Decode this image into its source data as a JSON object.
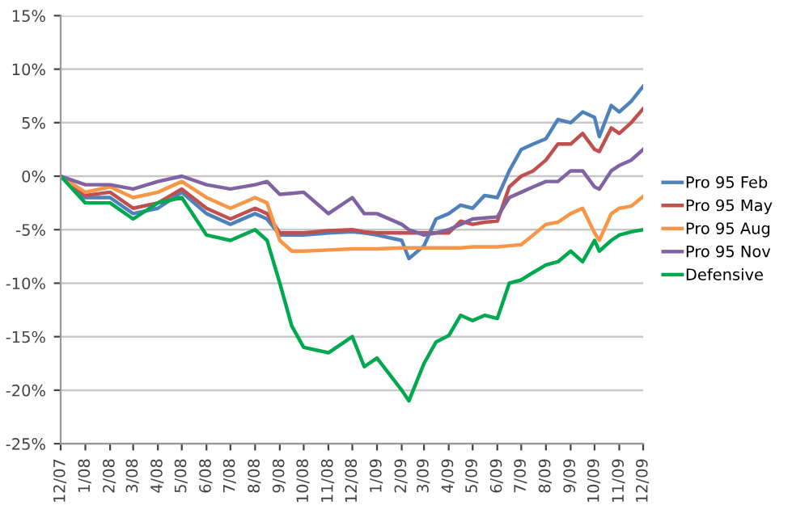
{
  "chart_data": {
    "type": "line",
    "x": [
      "2007-12-01",
      "2008-01-01",
      "2008-02-01",
      "2008-03-01",
      "2008-04-01",
      "2008-05-01",
      "2008-06-01",
      "2008-07-01",
      "2008-08-01",
      "2008-08-16",
      "2008-09-01",
      "2008-09-16",
      "2008-10-01",
      "2008-11-01",
      "2008-12-01",
      "2008-12-16",
      "2009-01-01",
      "2009-02-01",
      "2009-02-10",
      "2009-03-01",
      "2009-03-16",
      "2009-04-01",
      "2009-04-16",
      "2009-05-01",
      "2009-05-16",
      "2009-06-01",
      "2009-06-16",
      "2009-07-01",
      "2009-07-16",
      "2009-08-01",
      "2009-08-16",
      "2009-09-01",
      "2009-09-16",
      "2009-10-01",
      "2009-10-07",
      "2009-10-22",
      "2009-11-01",
      "2009-11-16",
      "2009-12-01"
    ],
    "series": [
      {
        "name": "Pro 95 Feb",
        "color": "#4f81bd",
        "values": [
          0,
          -2,
          -2,
          -3.5,
          -3,
          -1.5,
          -3.5,
          -4.5,
          -3.5,
          -4,
          -5.5,
          -5.5,
          -5.5,
          -5.3,
          -5.2,
          -5.3,
          -5.5,
          -6,
          -7.7,
          -6.5,
          -4,
          -3.5,
          -2.7,
          -3,
          -1.8,
          -2,
          0.5,
          2.5,
          3,
          3.5,
          5.3,
          5,
          6,
          5.5,
          3.7,
          6.6,
          6,
          7,
          8.4
        ]
      },
      {
        "name": "Pro 95 May",
        "color": "#c0504d",
        "values": [
          0,
          -1.8,
          -1.5,
          -3,
          -2.5,
          -1.2,
          -3,
          -4,
          -3,
          -3.5,
          -5.3,
          -5.3,
          -5.3,
          -5.1,
          -5,
          -5.2,
          -5.3,
          -5.3,
          -5.3,
          -5.3,
          -5.3,
          -5.3,
          -4.2,
          -4.5,
          -4.3,
          -4.2,
          -1,
          0,
          0.5,
          1.5,
          3,
          3,
          4,
          2.5,
          2.3,
          4.5,
          4,
          5,
          6.3
        ]
      },
      {
        "name": "Pro 95 Aug",
        "color": "#f79646",
        "values": [
          0,
          -1.5,
          -1,
          -2,
          -1.5,
          -0.5,
          -2,
          -3,
          -2,
          -2.5,
          -6,
          -7,
          -7,
          -6.9,
          -6.8,
          -6.8,
          -6.8,
          -6.7,
          -6.7,
          -6.7,
          -6.7,
          -6.7,
          -6.7,
          -6.6,
          -6.6,
          -6.6,
          -6.5,
          -6.4,
          -5.5,
          -4.5,
          -4.3,
          -3.5,
          -3,
          -5.3,
          -6,
          -3.5,
          -3,
          -2.8,
          -1.9
        ]
      },
      {
        "name": "Pro 95 Nov",
        "color": "#8064a2",
        "values": [
          0,
          -0.8,
          -0.8,
          -1.2,
          -0.5,
          0,
          -0.8,
          -1.2,
          -0.8,
          -0.5,
          -1.7,
          -1.6,
          -1.5,
          -3.5,
          -2,
          -3.5,
          -3.5,
          -4.5,
          -5,
          -5.5,
          -5.3,
          -5,
          -4.5,
          -4,
          -3.9,
          -3.8,
          -2,
          -1.5,
          -1,
          -0.5,
          -0.5,
          0.5,
          0.5,
          -1,
          -1.2,
          0.5,
          1,
          1.5,
          2.5
        ]
      },
      {
        "name": "Defensive",
        "color": "#00a84f",
        "values": [
          0,
          -2.5,
          -2.5,
          -4,
          -2.5,
          -2,
          -5.5,
          -6,
          -5,
          -6,
          -10,
          -14,
          -16,
          -16.5,
          -15,
          -17.8,
          -17,
          -20,
          -21,
          -17.5,
          -15.5,
          -14.9,
          -13,
          -13.5,
          -13,
          -13.3,
          -10,
          -9.7,
          -9,
          -8.3,
          -8,
          -7,
          -8,
          -6,
          -7,
          -6,
          -5.5,
          -5.2,
          -5
        ]
      }
    ],
    "xlim": [
      "2007-12-01",
      "2009-12-01"
    ],
    "xticks": [
      {
        "value": "2007-12",
        "label": "12/07"
      },
      {
        "value": "2008-01",
        "label": "1/08"
      },
      {
        "value": "2008-02",
        "label": "2/08"
      },
      {
        "value": "2008-03",
        "label": "3/08"
      },
      {
        "value": "2008-04",
        "label": "4/08"
      },
      {
        "value": "2008-05",
        "label": "5/08"
      },
      {
        "value": "2008-06",
        "label": "6/08"
      },
      {
        "value": "2008-07",
        "label": "7/08"
      },
      {
        "value": "2008-08",
        "label": "8/08"
      },
      {
        "value": "2008-09",
        "label": "9/08"
      },
      {
        "value": "2008-10",
        "label": "10/08"
      },
      {
        "value": "2008-11",
        "label": "11/08"
      },
      {
        "value": "2008-12",
        "label": "12/08"
      },
      {
        "value": "2009-01",
        "label": "1/09"
      },
      {
        "value": "2009-02",
        "label": "2/09"
      },
      {
        "value": "2009-03",
        "label": "3/09"
      },
      {
        "value": "2009-04",
        "label": "4/09"
      },
      {
        "value": "2009-05",
        "label": "5/09"
      },
      {
        "value": "2009-06",
        "label": "6/09"
      },
      {
        "value": "2009-07",
        "label": "7/09"
      },
      {
        "value": "2009-08",
        "label": "8/09"
      },
      {
        "value": "2009-09",
        "label": "9/09"
      },
      {
        "value": "2009-10",
        "label": "10/09"
      },
      {
        "value": "2009-11",
        "label": "11/09"
      },
      {
        "value": "2009-12",
        "label": "12/09"
      }
    ],
    "ylim": [
      -25,
      15
    ],
    "yticks": [
      {
        "value": -25,
        "label": "-25%"
      },
      {
        "value": -20,
        "label": "-20%"
      },
      {
        "value": -15,
        "label": "-15%"
      },
      {
        "value": -10,
        "label": "-10%"
      },
      {
        "value": -5,
        "label": "-5%"
      },
      {
        "value": 0,
        "label": "0%"
      },
      {
        "value": 5,
        "label": "5%"
      },
      {
        "value": 10,
        "label": "10%"
      },
      {
        "value": 15,
        "label": "15%"
      }
    ],
    "grid": "y",
    "legend": "right",
    "marker": "none",
    "line_style": "solid"
  }
}
